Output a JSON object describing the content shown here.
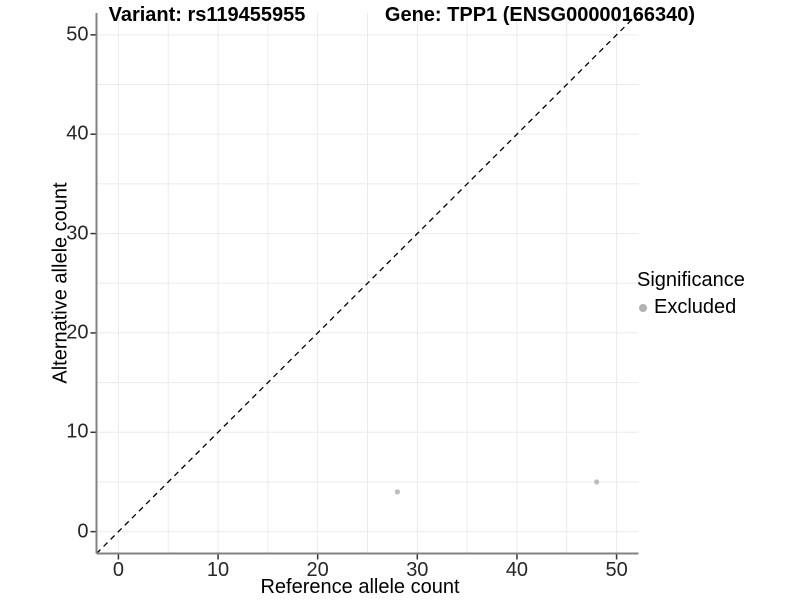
{
  "titles": {
    "left": "Variant: rs119455955",
    "right": "Gene: TPP1 (ENSG00000166340)"
  },
  "axes": {
    "x_label": "Reference allele count",
    "y_label": "Alternative allele count"
  },
  "legend": {
    "title": "Significance",
    "items": [
      {
        "label": "Excluded",
        "color": "#b2b2b2",
        "marker": "circle-icon"
      }
    ]
  },
  "colors": {
    "background": "#ffffff",
    "gridline": "#ebebeb",
    "axis_line": "#828282",
    "tick_mark": "#333333",
    "tick_label": "#262626",
    "point": "#bdbdbd",
    "identity_line": "#000000"
  },
  "chart_data": {
    "type": "scatter",
    "title": "Variant: rs119455955    Gene: TPP1 (ENSG00000166340)",
    "xlabel": "Reference allele count",
    "ylabel": "Alternative allele count",
    "xlim": [
      0,
      50
    ],
    "ylim": [
      0,
      50
    ],
    "xticks": [
      0,
      10,
      20,
      30,
      40,
      50
    ],
    "yticks": [
      0,
      10,
      20,
      30,
      40,
      50
    ],
    "grid": true,
    "grid_step": 5,
    "legend_position": "right",
    "identity_line": {
      "style": "dashed",
      "equation": "y = x",
      "color": "#000000"
    },
    "series": [
      {
        "name": "Excluded",
        "color": "#bdbdbd",
        "points": [
          [
            28,
            4
          ],
          [
            48,
            5
          ]
        ]
      }
    ]
  }
}
